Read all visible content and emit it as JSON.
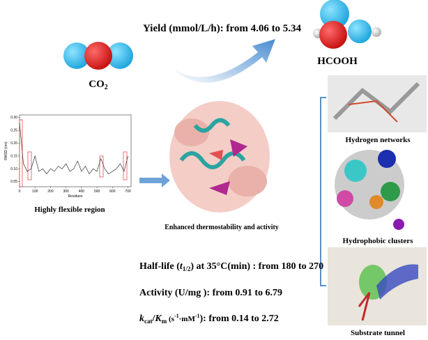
{
  "header": {
    "yield": "Yield (mmol/L/h): from 4.06 to 5.34",
    "co2": [
      "CO",
      "2"
    ],
    "product": "HCOOH"
  },
  "chart_data": {
    "type": "line",
    "xlabel": "Residues",
    "ylabel": "RMSD (nm)",
    "x": [
      0,
      25,
      50,
      75,
      100,
      125,
      150,
      175,
      200,
      225,
      250,
      275,
      300,
      325,
      350,
      375,
      400,
      425,
      450,
      475,
      500,
      525,
      550,
      575,
      600,
      625,
      650,
      675,
      700
    ],
    "values": [
      0.28,
      0.12,
      0.09,
      0.1,
      0.15,
      0.09,
      0.1,
      0.08,
      0.1,
      0.09,
      0.11,
      0.1,
      0.12,
      0.09,
      0.1,
      0.13,
      0.09,
      0.11,
      0.08,
      0.1,
      0.09,
      0.14,
      0.1,
      0.08,
      0.09,
      0.1,
      0.12,
      0.09,
      0.15
    ],
    "color": "#333333",
    "xlim": [
      0,
      720
    ],
    "ylim": [
      0.03,
      0.31
    ],
    "xticks": [
      0,
      100,
      200,
      300,
      400,
      500,
      600,
      700
    ],
    "yticks": [
      0.05,
      {
        "value": 0.1,
        "label": "0.10"
      },
      0.15,
      {
        "value": 0.2,
        "label": "0.20"
      },
      0.25,
      {
        "value": 0.3,
        "label": "0.30"
      }
    ]
  },
  "labels": {
    "flexible": "Highly flexible region",
    "enzyme": "Enhanced thermostability and activity"
  },
  "panels": [
    {
      "label": "Hydrogen networks"
    },
    {
      "label": "Hydrophobic clusters"
    },
    {
      "label": "Substrate tunnel"
    }
  ],
  "results": {
    "half_life": [
      "Half-life (",
      "t",
      "1/2",
      ") at 35°C(min) :  from 180 to 270"
    ],
    "activity": "Activity (U/mg ): from 0.91 to 6.79",
    "kcat_km": [
      "k",
      "cat",
      "/",
      "K",
      "m",
      " (s",
      "-1",
      "·mM",
      "-1",
      "):   from 0.14  to  2.72"
    ]
  }
}
